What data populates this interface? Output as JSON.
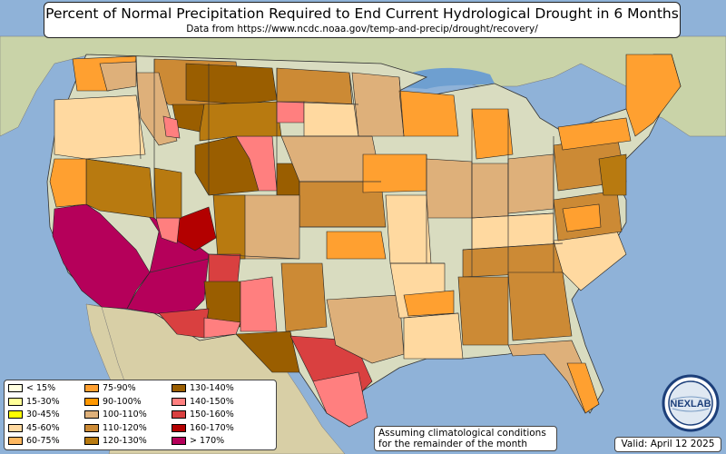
{
  "title": "Percent of Normal Precipitation Required to End Current Hydrological Drought in 6 Months",
  "subtitle": "Data from https://www.ncdc.noaa.gov/temp-and-precip/drought/recovery/",
  "note": {
    "line1": "Assuming climatological conditions",
    "line2": "for the remainder of the month"
  },
  "valid": "Valid: April 12 2025",
  "logo": {
    "text": "NEXLAB"
  },
  "colors": {
    "ocean": "#8fb2d8",
    "land": "#d9dcc0",
    "canada": "#c9d3a8",
    "mexico": "#d8cfa6",
    "lakes": "#6e9fd0",
    "border": "#222222"
  },
  "legend": [
    {
      "label": "< 15%",
      "color": "#ffffe0"
    },
    {
      "label": "15-30%",
      "color": "#ffff99"
    },
    {
      "label": "30-45%",
      "color": "#ffff00"
    },
    {
      "label": "45-60%",
      "color": "#ffd9a0"
    },
    {
      "label": "60-75%",
      "color": "#ffb860"
    },
    {
      "label": "75-90%",
      "color": "#ffa030"
    },
    {
      "label": "90-100%",
      "color": "#ff9800"
    },
    {
      "label": "100-110%",
      "color": "#deb07a"
    },
    {
      "label": "110-120%",
      "color": "#cc8a35"
    },
    {
      "label": "120-130%",
      "color": "#b87a10"
    },
    {
      "label": "130-140%",
      "color": "#9a5e00"
    },
    {
      "label": "140-150%",
      "color": "#ff7f7f"
    },
    {
      "label": "150-160%",
      "color": "#d94040"
    },
    {
      "label": "160-170%",
      "color": "#b30000"
    },
    {
      "label": "> 170%",
      "color": "#b5005a"
    }
  ]
}
